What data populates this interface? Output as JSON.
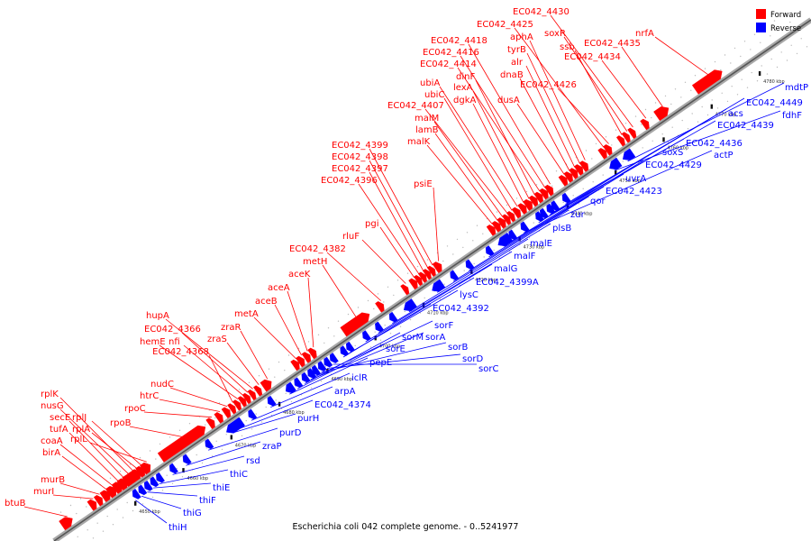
{
  "caption": "Escherichia coli 042 complete genome. - 0..5241977",
  "legend": {
    "forward": {
      "label": "Forward",
      "color": "#ff0000"
    },
    "reverse": {
      "label": "Reverse",
      "color": "#0000ff"
    }
  },
  "track_color": "#808080",
  "axis_ticks": [
    "4650 kbp",
    "4660 kbp",
    "4670 kbp",
    "4680 kbp",
    "4690 kbp",
    "4700 kbp",
    "4710 kbp",
    "4720 kbp",
    "4730 kbp",
    "4740 kbp",
    "4750 kbp",
    "4760 kbp",
    "4770 kbp",
    "4780 kbp"
  ],
  "forward_genes": [
    "btuB",
    "murI",
    "murB",
    "birA",
    "coaA",
    "tufA",
    "secE",
    "nusG",
    "rplK",
    "rplA",
    "rplJ",
    "rplL",
    "rpoB",
    "rpoC",
    "htrC",
    "nudC",
    "EC042_4368",
    "hemE",
    "nfi",
    "EC042_4366",
    "hupA",
    "zraS",
    "zraR",
    "metA",
    "aceB",
    "aceA",
    "aceK",
    "metH",
    "EC042_4382",
    "rluF",
    "pgi",
    "EC042_4396",
    "EC042_4397",
    "EC042_4398",
    "EC042_4399",
    "psiE",
    "malK",
    "lamB",
    "malM",
    "EC042_4407",
    "ubiC",
    "ubiA",
    "dgkA",
    "lexA",
    "dinF",
    "EC042_4414",
    "EC042_4416",
    "EC042_4418",
    "dusA",
    "dnaB",
    "alr",
    "tyrB",
    "aphA",
    "EC042_4425",
    "EC042_4426",
    "ssb",
    "soxR",
    "EC042_4430",
    "EC042_4434",
    "EC042_4435",
    "nrfA"
  ],
  "reverse_genes": [
    "thiH",
    "thiG",
    "thiF",
    "thiE",
    "thiC",
    "rsd",
    "zraP",
    "purD",
    "purH",
    "EC042_4374",
    "arpA",
    "iclR",
    "pepE",
    "sorE",
    "sorM",
    "sorA",
    "sorF",
    "sorB",
    "sorD",
    "sorC",
    "EC042_4392",
    "lysC",
    "EC042_4399A",
    "malG",
    "malF",
    "malE",
    "plsB",
    "zur",
    "qor",
    "EC042_4423",
    "uvrA",
    "EC042_4429",
    "actP",
    "soxS",
    "EC042_4436",
    "EC042_4439",
    "acs",
    "EC042_4449",
    "fdhF",
    "mdtP"
  ]
}
